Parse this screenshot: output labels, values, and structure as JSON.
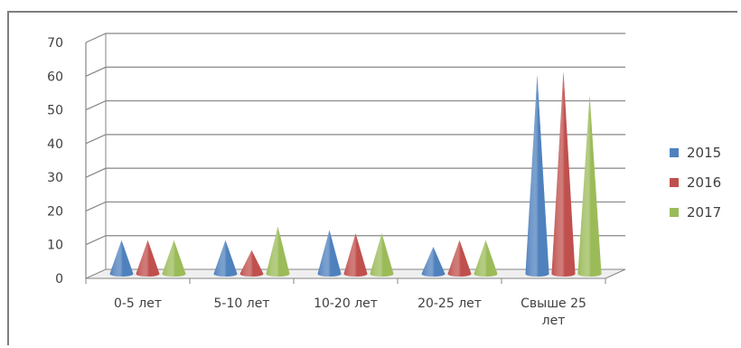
{
  "chart_data": {
    "type": "bar",
    "mark": "cone",
    "title": "",
    "xlabel": "",
    "ylabel": "",
    "ylim": [
      0,
      70
    ],
    "y_ticks": [
      0,
      10,
      20,
      30,
      40,
      50,
      60,
      70
    ],
    "grid": true,
    "legend_position": "right",
    "categories": [
      "0-5 лет",
      "5-10 лет",
      "10-20  лет",
      "20-25 лет",
      "Свыше 25 лет"
    ],
    "series": [
      {
        "name": "2015",
        "color": "#4f81bd",
        "values": [
          10,
          10,
          13,
          8,
          59
        ]
      },
      {
        "name": "2016",
        "color": "#c0504d",
        "values": [
          10,
          7,
          12,
          10,
          60
        ]
      },
      {
        "name": "2017",
        "color": "#9bbb59",
        "values": [
          10,
          14,
          12,
          10,
          53
        ]
      }
    ]
  }
}
